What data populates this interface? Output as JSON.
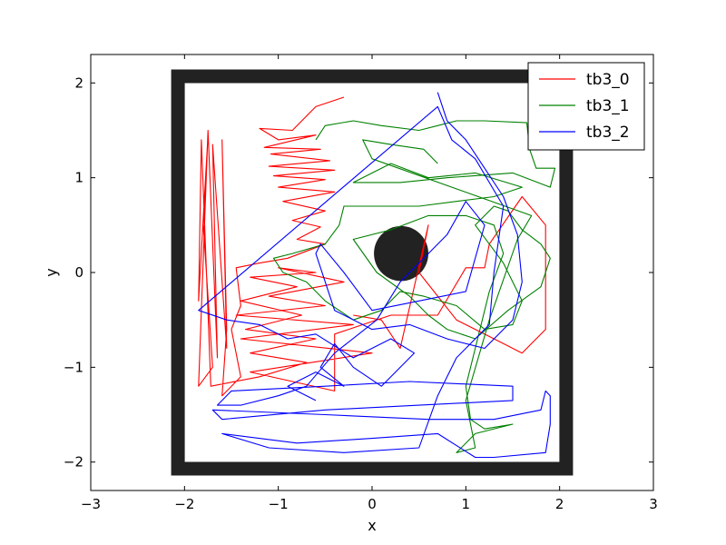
{
  "chart_data": {
    "type": "line",
    "xlabel": "x",
    "ylabel": "y",
    "xlim": [
      -3,
      3
    ],
    "ylim": [
      -2.3,
      2.3
    ],
    "xticks": [
      -3,
      -2,
      -1,
      0,
      1,
      2,
      3
    ],
    "yticks": [
      -2,
      -1,
      0,
      1,
      2
    ],
    "xtick_labels": [
      "−3",
      "−2",
      "−1",
      "0",
      "1",
      "2",
      "3"
    ],
    "ytick_labels": [
      "−2",
      "−1",
      "0",
      "1",
      "2"
    ],
    "grid": false,
    "legend_position": "top-right",
    "arena": {
      "walls": {
        "x": [
          -2.07,
          2.07
        ],
        "y": [
          -2.07,
          2.07
        ],
        "color": "#222222"
      },
      "obstacle": {
        "center": [
          0.31,
          0.2
        ],
        "radius": 0.29,
        "color": "#222222"
      }
    },
    "series": [
      {
        "name": "tb3_0",
        "color": "#ff0000",
        "points": [
          [
            -0.3,
            1.85
          ],
          [
            -0.6,
            1.75
          ],
          [
            -0.85,
            1.5
          ],
          [
            -1.2,
            1.52
          ],
          [
            -1.0,
            1.4
          ],
          [
            -0.6,
            1.45
          ],
          [
            -1.15,
            1.32
          ],
          [
            -0.55,
            1.3
          ],
          [
            -1.08,
            1.25
          ],
          [
            -0.45,
            1.18
          ],
          [
            -1.1,
            1.12
          ],
          [
            -0.4,
            1.08
          ],
          [
            -1.05,
            1.02
          ],
          [
            -0.5,
            0.98
          ],
          [
            -1.0,
            0.9
          ],
          [
            -0.4,
            0.85
          ],
          [
            -0.95,
            0.75
          ],
          [
            -0.5,
            0.65
          ],
          [
            -0.85,
            0.55
          ],
          [
            -0.55,
            0.48
          ],
          [
            -0.8,
            0.35
          ],
          [
            -0.5,
            0.3
          ],
          [
            -0.9,
            0.15
          ],
          [
            -1.2,
            0.1
          ],
          [
            -1.45,
            0.05
          ],
          [
            -1.4,
            -0.35
          ],
          [
            -1.5,
            -0.6
          ],
          [
            -1.4,
            -1.1
          ],
          [
            -1.6,
            -1.3
          ],
          [
            -1.55,
            -0.6
          ],
          [
            -1.6,
            1.4
          ],
          [
            -1.55,
            -0.8
          ],
          [
            -1.7,
            1.35
          ],
          [
            -1.65,
            -0.9
          ],
          [
            -1.75,
            1.5
          ],
          [
            -1.85,
            -1.2
          ],
          [
            -1.7,
            -1.0
          ],
          [
            -1.8,
            0.5
          ],
          [
            -1.75,
            1.45
          ],
          [
            -1.85,
            -0.3
          ],
          [
            -1.82,
            1.4
          ],
          [
            -1.72,
            -1.2
          ],
          [
            -1.2,
            -1.1
          ],
          [
            -0.7,
            -0.95
          ],
          [
            -1.3,
            -0.85
          ],
          [
            -0.6,
            -0.7
          ],
          [
            -1.35,
            -0.6
          ],
          [
            -0.75,
            -0.45
          ],
          [
            -1.4,
            -0.3
          ],
          [
            -0.8,
            -0.15
          ],
          [
            -1.3,
            -0.05
          ],
          [
            -0.6,
            0.0
          ],
          [
            -1.0,
            0.05
          ],
          [
            -0.3,
            -0.1
          ],
          [
            -1.1,
            -0.25
          ],
          [
            -0.5,
            -0.35
          ],
          [
            -1.45,
            -0.45
          ],
          [
            -0.2,
            -0.55
          ],
          [
            -1.4,
            -0.7
          ],
          [
            0.0,
            -0.85
          ],
          [
            -1.3,
            -1.05
          ],
          [
            -0.4,
            -1.25
          ],
          [
            -0.4,
            -0.65
          ],
          [
            0.2,
            -0.45
          ],
          [
            0.7,
            -0.45
          ],
          [
            1.0,
            0.05
          ],
          [
            1.2,
            0.05
          ],
          [
            1.25,
            0.3
          ],
          [
            1.6,
            0.8
          ],
          [
            1.85,
            0.5
          ],
          [
            1.85,
            -0.6
          ],
          [
            1.6,
            -0.85
          ],
          [
            1.3,
            -0.7
          ],
          [
            0.9,
            -0.5
          ],
          [
            0.5,
            0.0
          ],
          [
            0.6,
            0.5
          ],
          [
            0.3,
            -0.8
          ],
          [
            0.1,
            -0.5
          ],
          [
            -0.2,
            -0.45
          ]
        ]
      },
      {
        "name": "tb3_1",
        "color": "#008000",
        "points": [
          [
            -0.6,
            1.4
          ],
          [
            -0.5,
            1.55
          ],
          [
            -0.2,
            1.6
          ],
          [
            0.1,
            1.55
          ],
          [
            0.5,
            1.5
          ],
          [
            0.7,
            1.55
          ],
          [
            0.9,
            1.6
          ],
          [
            1.2,
            1.6
          ],
          [
            1.65,
            1.58
          ],
          [
            1.68,
            1.3
          ],
          [
            1.75,
            1.1
          ],
          [
            1.95,
            1.1
          ],
          [
            1.9,
            0.9
          ],
          [
            1.5,
            1.05
          ],
          [
            0.8,
            1.0
          ],
          [
            0.3,
            0.95
          ],
          [
            -0.2,
            0.95
          ],
          [
            0.2,
            1.15
          ],
          [
            0.6,
            1.0
          ],
          [
            1.1,
            1.05
          ],
          [
            1.6,
            0.9
          ],
          [
            1.3,
            0.8
          ],
          [
            0.9,
            0.75
          ],
          [
            0.5,
            0.7
          ],
          [
            -0.3,
            0.7
          ],
          [
            -0.35,
            0.5
          ],
          [
            -0.5,
            0.3
          ],
          [
            -0.85,
            0.2
          ],
          [
            -1.05,
            0.15
          ],
          [
            -0.95,
            0.0
          ],
          [
            -0.7,
            -0.1
          ],
          [
            -0.5,
            -0.3
          ],
          [
            -0.2,
            -0.5
          ],
          [
            0.1,
            -0.4
          ],
          [
            0.3,
            -0.2
          ],
          [
            0.55,
            -0.25
          ],
          [
            0.9,
            -0.35
          ],
          [
            1.2,
            -0.6
          ],
          [
            1.5,
            -0.55
          ],
          [
            1.6,
            -0.3
          ],
          [
            1.4,
            0.1
          ],
          [
            1.25,
            0.3
          ],
          [
            1.1,
            0.5
          ],
          [
            1.3,
            0.7
          ],
          [
            1.45,
            0.65
          ],
          [
            1.6,
            0.45
          ],
          [
            1.8,
            0.3
          ],
          [
            1.9,
            0.15
          ],
          [
            1.8,
            -0.15
          ],
          [
            1.45,
            -0.4
          ],
          [
            1.1,
            -0.7
          ],
          [
            0.8,
            -0.6
          ],
          [
            0.6,
            -0.45
          ],
          [
            0.4,
            -0.25
          ],
          [
            0.05,
            0.0
          ],
          [
            -0.2,
            0.35
          ],
          [
            0.2,
            0.45
          ],
          [
            0.6,
            0.6
          ],
          [
            1.0,
            0.6
          ],
          [
            1.3,
            0.5
          ],
          [
            1.4,
            0.2
          ],
          [
            1.25,
            -0.2
          ],
          [
            1.1,
            -0.8
          ],
          [
            1.0,
            -1.2
          ],
          [
            1.05,
            -1.55
          ],
          [
            1.2,
            -1.65
          ],
          [
            1.5,
            -1.6
          ],
          [
            1.1,
            -1.7
          ],
          [
            0.9,
            -1.9
          ],
          [
            1.1,
            -1.85
          ],
          [
            1.0,
            -1.35
          ],
          [
            1.25,
            -0.5
          ],
          [
            1.55,
            0.35
          ],
          [
            1.7,
            0.6
          ],
          [
            0.0,
            1.2
          ],
          [
            -0.1,
            1.4
          ],
          [
            0.2,
            1.35
          ],
          [
            0.55,
            1.3
          ],
          [
            0.7,
            1.15
          ]
        ]
      },
      {
        "name": "tb3_2",
        "color": "#0000ff",
        "points": [
          [
            0.7,
            1.9
          ],
          [
            0.8,
            1.6
          ],
          [
            1.0,
            1.4
          ],
          [
            1.2,
            1.1
          ],
          [
            1.4,
            0.8
          ],
          [
            1.55,
            0.4
          ],
          [
            1.6,
            -0.1
          ],
          [
            1.5,
            -0.5
          ],
          [
            1.2,
            -0.8
          ],
          [
            0.8,
            -0.7
          ],
          [
            0.4,
            -0.55
          ],
          [
            0.0,
            -0.6
          ],
          [
            -0.4,
            -0.4
          ],
          [
            -0.6,
            0.2
          ],
          [
            -0.55,
            0.3
          ],
          [
            -0.3,
            0.0
          ],
          [
            0.0,
            -0.4
          ],
          [
            0.5,
            -0.3
          ],
          [
            1.0,
            -0.2
          ],
          [
            1.2,
            0.5
          ],
          [
            1.0,
            0.75
          ],
          [
            0.8,
            0.4
          ],
          [
            0.5,
            0.1
          ],
          [
            0.3,
            -0.1
          ],
          [
            0.05,
            -0.5
          ],
          [
            -0.4,
            -0.85
          ],
          [
            -0.7,
            -1.2
          ],
          [
            -1.0,
            -1.3
          ],
          [
            -1.4,
            -1.4
          ],
          [
            -1.65,
            -1.4
          ],
          [
            -1.5,
            -1.25
          ],
          [
            -0.5,
            -1.2
          ],
          [
            0.4,
            -1.15
          ],
          [
            1.5,
            -1.2
          ],
          [
            1.5,
            -1.35
          ],
          [
            0.5,
            -1.4
          ],
          [
            -0.5,
            -1.45
          ],
          [
            -1.6,
            -1.55
          ],
          [
            -1.7,
            -1.45
          ],
          [
            -0.5,
            -1.5
          ],
          [
            0.6,
            -1.55
          ],
          [
            1.3,
            -1.55
          ],
          [
            1.8,
            -1.45
          ],
          [
            1.85,
            -1.25
          ],
          [
            1.9,
            -1.3
          ],
          [
            1.9,
            -1.6
          ],
          [
            1.85,
            -1.9
          ],
          [
            1.3,
            -1.95
          ],
          [
            1.1,
            -1.95
          ],
          [
            0.7,
            -1.7
          ],
          [
            0.0,
            -1.75
          ],
          [
            -0.8,
            -1.8
          ],
          [
            -1.6,
            -1.7
          ],
          [
            -1.1,
            -1.85
          ],
          [
            -0.3,
            -1.9
          ],
          [
            0.5,
            -1.85
          ],
          [
            0.7,
            -1.3
          ],
          [
            0.9,
            -0.9
          ],
          [
            1.25,
            -0.55
          ],
          [
            1.3,
            0.0
          ],
          [
            1.4,
            0.7
          ],
          [
            1.1,
            1.2
          ],
          [
            0.85,
            1.4
          ],
          [
            0.7,
            1.75
          ],
          [
            -1.85,
            -0.4
          ],
          [
            -1.55,
            -0.5
          ],
          [
            -1.2,
            -0.55
          ],
          [
            -0.9,
            -0.7
          ],
          [
            -0.6,
            -0.65
          ],
          [
            -0.2,
            -0.9
          ],
          [
            0.2,
            -0.7
          ],
          [
            0.45,
            -0.85
          ],
          [
            0.1,
            -1.2
          ],
          [
            -0.2,
            -1.0
          ],
          [
            -0.4,
            -0.75
          ],
          [
            -0.55,
            -1.0
          ],
          [
            -0.3,
            -1.2
          ],
          [
            -0.6,
            -1.05
          ],
          [
            -0.9,
            -1.2
          ],
          [
            -0.6,
            -1.35
          ]
        ]
      }
    ]
  }
}
